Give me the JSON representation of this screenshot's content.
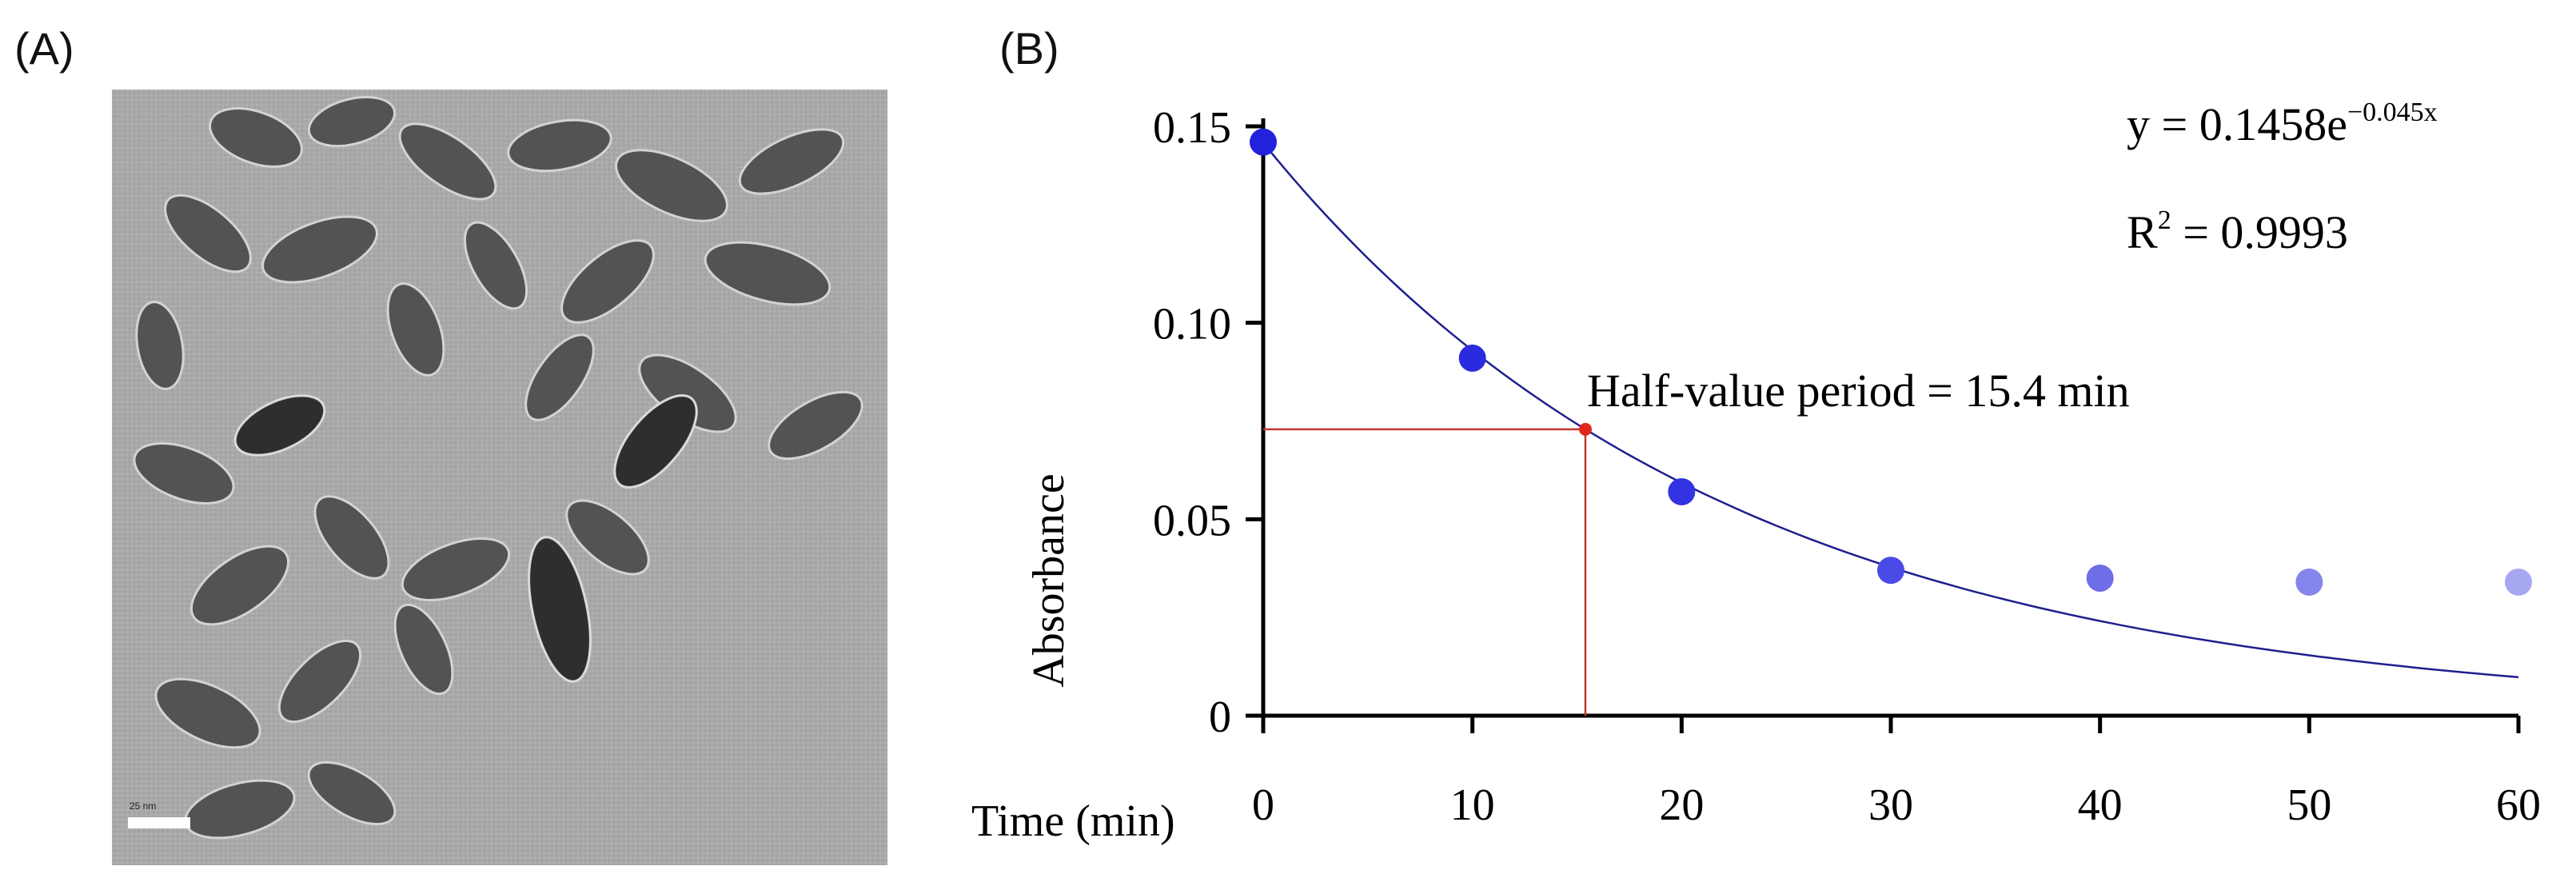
{
  "panels": {
    "a_label": "(A)",
    "b_label": "(B)"
  },
  "tem": {
    "scale_bar_text": "25 nm"
  },
  "colors": {
    "axis": "#000000",
    "fit_line": "#1f1f8f",
    "half_marker": "#e0261b",
    "half_lines": "#c0392b",
    "points": [
      "#2222dd",
      "#2a2ae0",
      "#3333e3",
      "#4a4ae6",
      "#6e6ee9",
      "#8585ec",
      "#a7a7f1"
    ],
    "tem_background": "#a9a9a9",
    "particle_dark": "#3d3d3d",
    "particle_mid": "#6a6a6a"
  },
  "chart_data": {
    "type": "scatter",
    "ylabel": "Absorbance",
    "xlabel": "Time (min)",
    "xlim": [
      0,
      60
    ],
    "ylim": [
      0,
      0.15
    ],
    "x_ticks": [
      "0",
      "10",
      "20",
      "30",
      "40",
      "50",
      "60"
    ],
    "y_ticks": [
      "0",
      "0.05",
      "0.10",
      "0.15"
    ],
    "series": [
      {
        "x": [
          0,
          10,
          20,
          30,
          40,
          50,
          60
        ],
        "y": [
          0.146,
          0.091,
          0.057,
          0.037,
          0.035,
          0.034,
          0.034
        ]
      }
    ],
    "fit": {
      "a": 0.1458,
      "b": -0.045,
      "x_range": [
        0,
        60
      ]
    },
    "half_value_point": {
      "x": 15.4,
      "y": 0.0729
    },
    "annotations": {
      "equation_prefix": "y = 0.1458e",
      "equation_exponent": "−0.045x",
      "r2_prefix": "R",
      "r2_superscript": "2",
      "r2_value": " = 0.9993",
      "half_value": "Half-value period = 15.4 min"
    }
  }
}
